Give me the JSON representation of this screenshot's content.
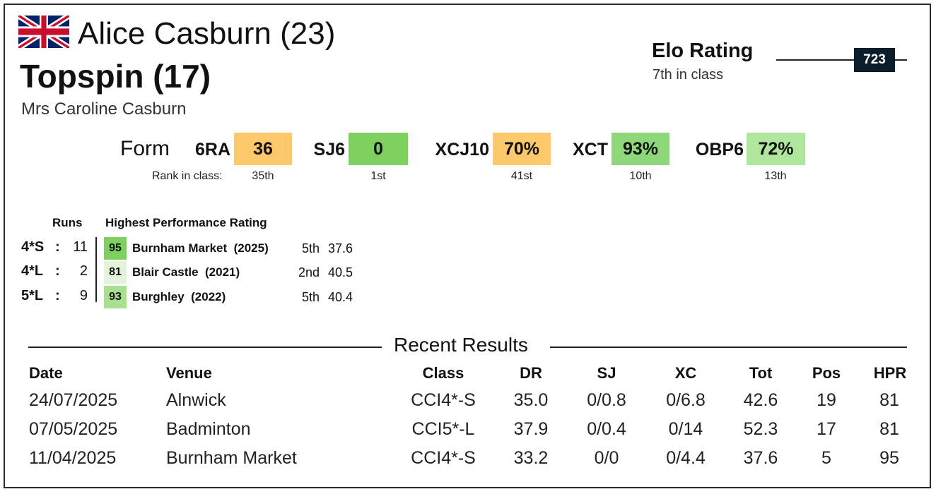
{
  "header": {
    "flag_icon": "uk-flag-icon",
    "rider": "Alice Casburn (23)",
    "horse": "Topspin (17)",
    "owner": "Mrs Caroline Casburn"
  },
  "elo": {
    "title": "Elo Rating",
    "rank_text": "7th in class",
    "value": "723"
  },
  "form": {
    "label": "Form",
    "rank_label": "Rank in class:",
    "items": [
      {
        "code": "6RA",
        "value": "36",
        "rank": "35th",
        "color": "#fdc86b"
      },
      {
        "code": "SJ6",
        "value": "0",
        "rank": "1st",
        "color": "#7dd05f"
      },
      {
        "code": "XCJ10",
        "value": "70%",
        "rank": "41st",
        "color": "#fdc86b"
      },
      {
        "code": "XCT",
        "value": "93%",
        "rank": "10th",
        "color": "#8fd879"
      },
      {
        "code": "OBP6",
        "value": "72%",
        "rank": "13th",
        "color": "#b0e59d"
      }
    ]
  },
  "runs": {
    "runs_header": "Runs",
    "hpr_header": "Highest Performance Rating",
    "rows": [
      {
        "level": "4*S",
        "sep": ":",
        "count": "11",
        "hpr": "95",
        "event": "Burnham Market",
        "year": "(2025)",
        "pos": "5th",
        "score": "37.6",
        "color": "#7dd05f"
      },
      {
        "level": "4*L",
        "sep": ":",
        "count": "2",
        "hpr": "81",
        "event": "Blair Castle",
        "year": "(2021)",
        "pos": "2nd",
        "score": "40.5",
        "color": "#e2f3d9"
      },
      {
        "level": "5*L",
        "sep": ":",
        "count": "9",
        "hpr": "93",
        "event": "Burghley",
        "year": "(2022)",
        "pos": "5th",
        "score": "40.4",
        "color": "#a8e08f"
      }
    ]
  },
  "results": {
    "title": "Recent Results",
    "headers": {
      "date": "Date",
      "venue": "Venue",
      "class": "Class",
      "dr": "DR",
      "sj": "SJ",
      "xc": "XC",
      "tot": "Tot",
      "pos": "Pos",
      "hpr": "HPR"
    },
    "rows": [
      {
        "date": "24/07/2025",
        "venue": "Alnwick",
        "class": "CCI4*-S",
        "dr": "35.0",
        "sj": "0/0.8",
        "xc": "0/6.8",
        "tot": "42.6",
        "pos": "19",
        "hpr": "81"
      },
      {
        "date": "07/05/2025",
        "venue": "Badminton",
        "class": "CCI5*-L",
        "dr": "37.9",
        "sj": "0/0.4",
        "xc": "0/14",
        "tot": "52.3",
        "pos": "17",
        "hpr": "81"
      },
      {
        "date": "11/04/2025",
        "venue": "Burnham Market",
        "class": "CCI4*-S",
        "dr": "33.2",
        "sj": "0/0",
        "xc": "0/4.4",
        "tot": "37.6",
        "pos": "5",
        "hpr": "95"
      }
    ]
  }
}
